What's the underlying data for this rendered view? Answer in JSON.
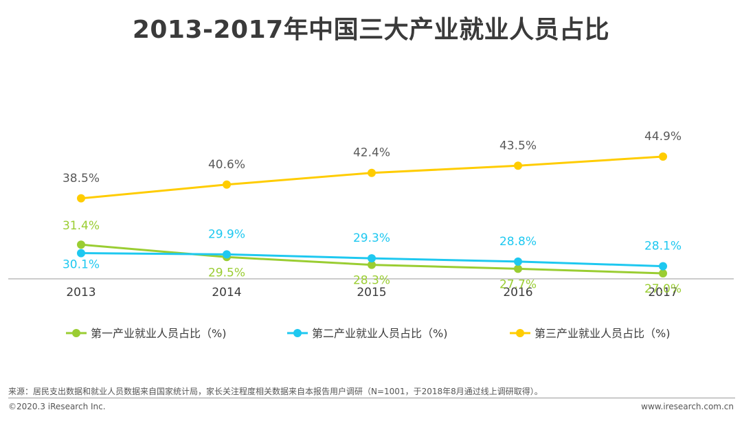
{
  "chart_data": {
    "type": "line",
    "title": "2013-2017年中国三大产业就业人员占比",
    "categories": [
      "2013",
      "2014",
      "2015",
      "2016",
      "2017"
    ],
    "xlabel": "",
    "ylabel": "",
    "ylim": [
      0,
      60
    ],
    "grid": false,
    "legend_position": "bottom",
    "series": [
      {
        "name": "第一产业就业人员占比（%)",
        "color": "#9acd32",
        "label_color": "#9acd32",
        "values": [
          31.4,
          29.5,
          28.3,
          27.7,
          27.0
        ],
        "labels": [
          "31.4%",
          "29.5%",
          "28.3%",
          "27.7%",
          "27.0%"
        ]
      },
      {
        "name": "第二产业就业人员占比（%)",
        "color": "#1ec8f0",
        "label_color": "#1ec8f0",
        "values": [
          30.1,
          29.9,
          29.3,
          28.8,
          28.1
        ],
        "labels": [
          "30.1%",
          "29.9%",
          "29.3%",
          "28.8%",
          "28.1%"
        ]
      },
      {
        "name": "第三产业就业人员占比（%)",
        "color": "#ffcc00",
        "label_color": "#595959",
        "values": [
          38.5,
          40.6,
          42.4,
          43.5,
          44.9
        ],
        "labels": [
          "38.5%",
          "40.6%",
          "42.4%",
          "43.5%",
          "44.9%"
        ]
      }
    ]
  },
  "footer": {
    "source": "来源：居民支出数据和就业人员数据来自国家统计局，家长关注程度相关数据来自本报告用户调研（N=1001，于2018年8月通过线上调研取得）。",
    "copyright": "©2020.3 iResearch Inc.",
    "website": "www.iresearch.com.cn"
  }
}
